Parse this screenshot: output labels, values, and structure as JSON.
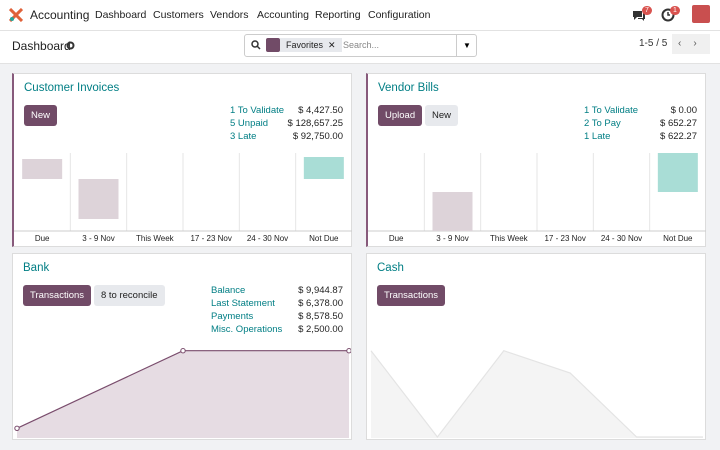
{
  "navbar": {
    "app": "Accounting",
    "menu": [
      "Dashboard",
      "Customers",
      "Vendors",
      "Accounting",
      "Reporting",
      "Configuration"
    ],
    "badges": {
      "messages": 7,
      "activities": 1
    }
  },
  "control_panel": {
    "title": "Dashboard",
    "facet": "Favorites",
    "search_placeholder": "Search...",
    "pager": "1-5 / 5"
  },
  "journals": [
    {
      "title": "Customer Invoices",
      "buttons": [
        "New"
      ],
      "stats": [
        {
          "label": "1 To Validate",
          "value": "$ 4,427.50"
        },
        {
          "label": "5 Unpaid",
          "value": "$ 128,657.25"
        },
        {
          "label": "3 Late",
          "value": "$ 92,750.00"
        }
      ],
      "graph": {
        "type": "bar",
        "categories": [
          "Due",
          "3 - 9 Nov",
          "This Week",
          "17 - 23 Nov",
          "24 - 30 Nov",
          "Not Due"
        ],
        "values": [
          20,
          -40,
          0,
          0,
          0,
          22
        ],
        "ylim": [
          -52,
          26
        ],
        "colors": [
          "#ddd3d9",
          "#ddd3d9",
          "#ddd3d9",
          "#ddd3d9",
          "#ddd3d9",
          "#a9ddd6"
        ]
      }
    },
    {
      "title": "Vendor Bills",
      "buttons": [
        "Upload",
        "New"
      ],
      "stats": [
        {
          "label": "1 To Validate",
          "value": "$ 0.00"
        },
        {
          "label": "2 To Pay",
          "value": "$ 652.27"
        },
        {
          "label": "1 Late",
          "value": "$ 622.27"
        }
      ],
      "graph": {
        "type": "bar",
        "categories": [
          "Due",
          "3 - 9 Nov",
          "This Week",
          "17 - 23 Nov",
          "24 - 30 Nov",
          "Not Due"
        ],
        "values": [
          0,
          -38,
          0,
          0,
          0,
          38
        ],
        "ylim": [
          -38,
          38
        ],
        "colors": [
          "#ddd3d9",
          "#ddd3d9",
          "#ddd3d9",
          "#ddd3d9",
          "#ddd3d9",
          "#a9ddd6"
        ]
      }
    },
    {
      "title": "Bank",
      "buttons": [
        "Transactions",
        "8 to reconcile"
      ],
      "stats": [
        {
          "label": "Balance",
          "value": "$ 9,944.87"
        },
        {
          "label": "Last Statement",
          "value": "$ 6,378.00"
        },
        {
          "label": "Payments",
          "value": "$ 8,578.50"
        },
        {
          "label": "Misc. Operations",
          "value": "$ 2,500.00"
        }
      ],
      "graph": {
        "type": "line",
        "values": [
          10,
          90,
          90
        ],
        "ylim": [
          0,
          100
        ],
        "color": "#7a4d6d",
        "fill": "#e6dce3"
      }
    },
    {
      "title": "Cash",
      "buttons": [
        "Transactions"
      ],
      "stats": [],
      "graph": {
        "type": "line",
        "values": [
          90,
          1,
          90,
          67,
          1,
          1
        ],
        "ylim": [
          0,
          100
        ],
        "color": "#e4e4e4",
        "fill": "#f4f4f4"
      }
    }
  ]
}
